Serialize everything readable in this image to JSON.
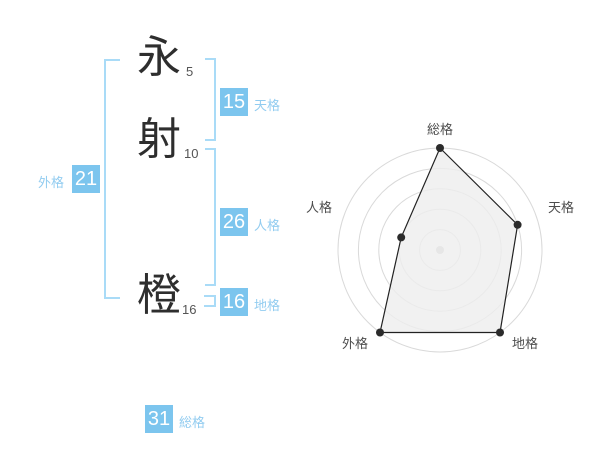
{
  "name_analysis": {
    "characters": [
      {
        "char": "永",
        "strokes": "5"
      },
      {
        "char": "射",
        "strokes": "10"
      },
      {
        "char": "橙",
        "strokes": "16"
      }
    ],
    "categories": {
      "tenkaku": {
        "value": "15",
        "label": "天格"
      },
      "jinkaku": {
        "value": "26",
        "label": "人格"
      },
      "chikaku": {
        "value": "16",
        "label": "地格"
      },
      "gaikaku": {
        "value": "21",
        "label": "外格"
      },
      "soukaku": {
        "value": "31",
        "label": "総格"
      }
    }
  },
  "chart_data": {
    "type": "radar",
    "axes": [
      "総格",
      "天格",
      "地格",
      "外格",
      "人格"
    ],
    "values": [
      5,
      4,
      5,
      5,
      2
    ],
    "max": 5,
    "rings": 5,
    "start_angle_deg": 90,
    "direction": "clockwise",
    "legend": false,
    "title": "",
    "ring_color": "#d9d9d9",
    "series_stroke": "#222222",
    "series_fill": "#ededed",
    "series_fill_opacity": 0.8,
    "vertex_color": "#2b2b2b",
    "center_dot_color": "#c6c6c6",
    "label_color": "#4d4d4d"
  },
  "colors": {
    "value_box_blue": "#7cc5ee",
    "category_label_blue": "#92ccf0",
    "bracket_blue": "#a9dbf7",
    "kanji_gray": "#2e2e2e"
  }
}
